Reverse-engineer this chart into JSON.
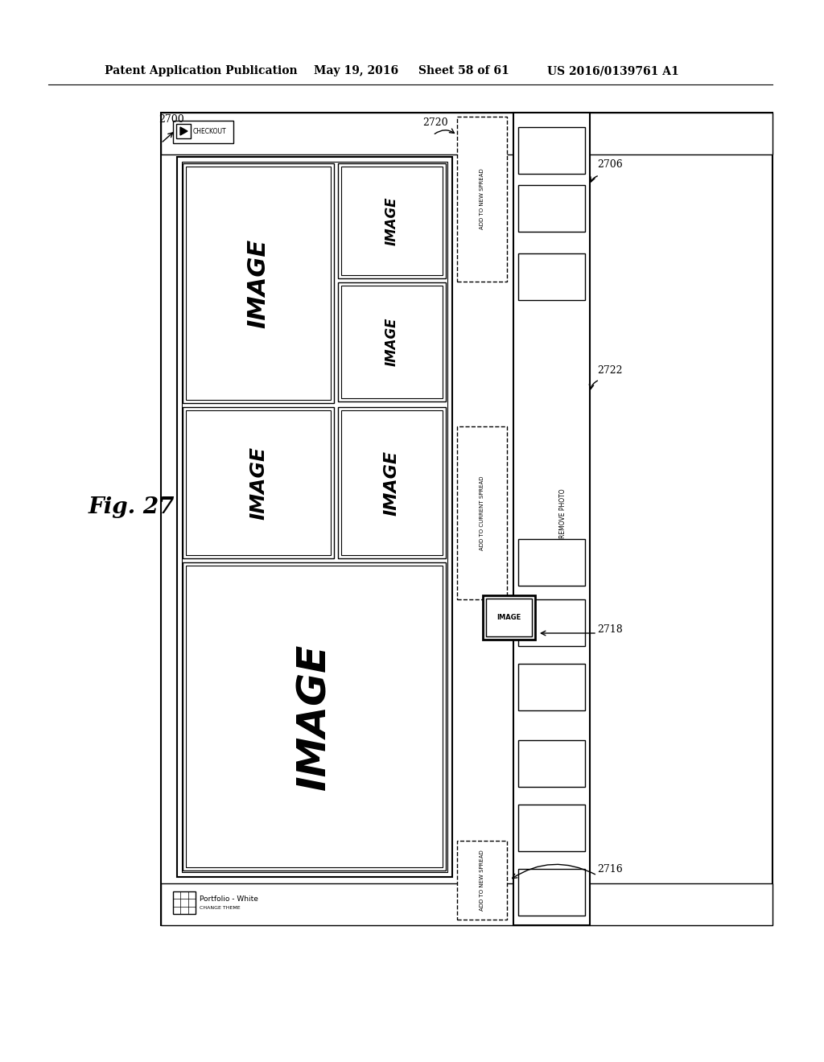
{
  "bg_color": "#ffffff",
  "header_text": "Patent Application Publication",
  "header_date": "May 19, 2016",
  "header_sheet": "Sheet 58 of 61",
  "header_patent": "US 2016/0139761 A1",
  "fig_label": "Fig. 27",
  "label_2700": "2700",
  "label_2706": "2706",
  "label_2716": "2716",
  "label_2718": "2718",
  "label_2720": "2720",
  "label_2722": "2722",
  "checkout_text": "CHECKOUT",
  "change_theme_text": "CHANGE THEME",
  "portfolio_white_text": "Portfolio - White",
  "add_to_new_spread_top": "ADD TO NEW SPREAD",
  "add_to_current_spread": "ADD TO CURRENT SPREAD",
  "add_to_new_spread_bot": "ADD TO NEW SPREAD",
  "remove_photo": "REMOVE PHOTO",
  "image_label": "IMAGE"
}
